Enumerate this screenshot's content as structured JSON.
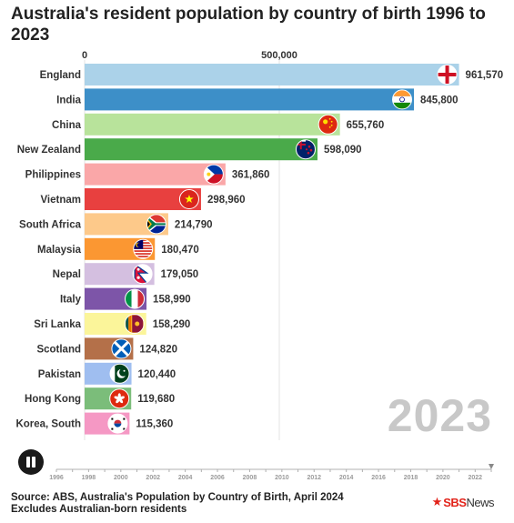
{
  "title": "Australia's resident population by country of birth 1996 to 2023",
  "current_year": "2023",
  "source_line1": "Source: ABS, Australia's Population by Country of Birth, April 2024",
  "source_line2": "Excludes Australian-born residents",
  "logo": {
    "mark": "★",
    "brand": "SBS",
    "suffix": "News"
  },
  "controls": {
    "play_state": "paused",
    "pause_icon": "pause-icon"
  },
  "chart_data": {
    "type": "bar",
    "orientation": "horizontal",
    "title": "Australia's resident population by country of birth 1996 to 2023",
    "x_ticks": [
      0,
      500000
    ],
    "x_tick_labels": [
      "0",
      "500,000"
    ],
    "xlim": [
      0,
      1000000
    ],
    "categories": [
      "England",
      "India",
      "China",
      "New Zealand",
      "Philippines",
      "Vietnam",
      "South Africa",
      "Malaysia",
      "Nepal",
      "Italy",
      "Sri Lanka",
      "Scotland",
      "Pakistan",
      "Hong Kong",
      "Korea, South"
    ],
    "values": [
      961570,
      845800,
      655760,
      598090,
      361860,
      298960,
      214790,
      180470,
      179050,
      158990,
      158290,
      124820,
      120440,
      119680,
      115360
    ],
    "value_labels": [
      "961,570",
      "845,800",
      "655,760",
      "598,090",
      "361,860",
      "298,960",
      "214,790",
      "180,470",
      "179,050",
      "158,990",
      "158,290",
      "124,820",
      "120,440",
      "119,680",
      "115,360"
    ],
    "colors": [
      "#abd2e9",
      "#3d8fc8",
      "#b8e39b",
      "#4aaa4a",
      "#faa7a8",
      "#e8403f",
      "#fdc98a",
      "#fb9732",
      "#d4bfe0",
      "#7d55a8",
      "#fbf59a",
      "#b47049",
      "#9fbef0",
      "#7bbd7a",
      "#f598c4"
    ],
    "flag_icons": [
      "england-flag-icon",
      "india-flag-icon",
      "china-flag-icon",
      "new-zealand-flag-icon",
      "philippines-flag-icon",
      "vietnam-flag-icon",
      "south-africa-flag-icon",
      "malaysia-flag-icon",
      "nepal-flag-icon",
      "italy-flag-icon",
      "sri-lanka-flag-icon",
      "scotland-flag-icon",
      "pakistan-flag-icon",
      "hong-kong-flag-icon",
      "south-korea-flag-icon"
    ],
    "timeline": {
      "years": [
        "1996",
        "1998",
        "2000",
        "2002",
        "2004",
        "2006",
        "2008",
        "2010",
        "2012",
        "2014",
        "2016",
        "2018",
        "2020",
        "2022"
      ],
      "range": [
        1996,
        2023
      ],
      "current": 2023
    },
    "grid": true,
    "legend": "none"
  }
}
